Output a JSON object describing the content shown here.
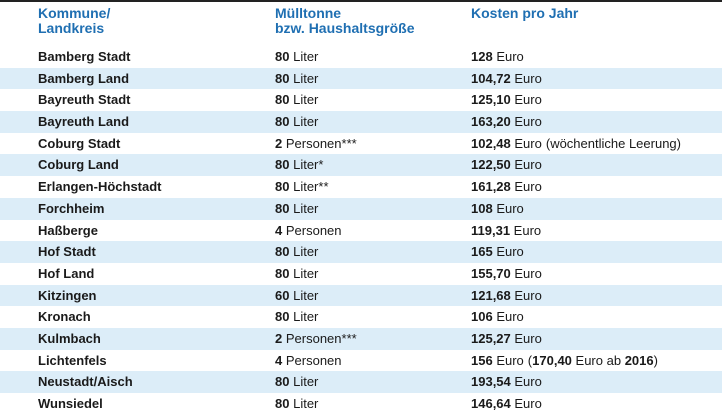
{
  "header": {
    "col1_line1": "Kommune/",
    "col1_line2": "Landkreis",
    "col2_line1": "Mülltonne",
    "col2_line2": "bzw. Haushaltsgröße",
    "col3": "Kosten pro Jahr"
  },
  "colors": {
    "header_text": "#1f6fb2",
    "row_shade": "#dcedf8"
  },
  "rows": [
    {
      "name": "Bamberg Stadt",
      "size_num": "80",
      "size_unit": "Liter",
      "cost_num": "128",
      "cost_unit": "Euro",
      "note_pre": "",
      "note_bold": "",
      "note_mid": "",
      "note_bold2": "",
      "note_post": ""
    },
    {
      "name": "Bamberg Land",
      "size_num": "80",
      "size_unit": "Liter",
      "cost_num": "104,72",
      "cost_unit": "Euro",
      "note_pre": "",
      "note_bold": "",
      "note_mid": "",
      "note_bold2": "",
      "note_post": ""
    },
    {
      "name": "Bayreuth Stadt",
      "size_num": "80",
      "size_unit": "Liter",
      "cost_num": "125,10",
      "cost_unit": "Euro",
      "note_pre": "",
      "note_bold": "",
      "note_mid": "",
      "note_bold2": "",
      "note_post": ""
    },
    {
      "name": "Bayreuth Land",
      "size_num": "80",
      "size_unit": "Liter",
      "cost_num": "163,20",
      "cost_unit": "Euro",
      "note_pre": "",
      "note_bold": "",
      "note_mid": "",
      "note_bold2": "",
      "note_post": ""
    },
    {
      "name": "Coburg Stadt",
      "size_num": "2",
      "size_unit": "Personen***",
      "cost_num": "102,48",
      "cost_unit": "Euro",
      "note_pre": "(wöchentliche Leerung)",
      "note_bold": "",
      "note_mid": "",
      "note_bold2": "",
      "note_post": ""
    },
    {
      "name": "Coburg Land",
      "size_num": "80",
      "size_unit": "Liter*",
      "cost_num": "122,50",
      "cost_unit": "Euro",
      "note_pre": "",
      "note_bold": "",
      "note_mid": "",
      "note_bold2": "",
      "note_post": ""
    },
    {
      "name": "Erlangen-Höchstadt",
      "size_num": "80",
      "size_unit": "Liter**",
      "cost_num": "161,28",
      "cost_unit": "Euro",
      "note_pre": "",
      "note_bold": "",
      "note_mid": "",
      "note_bold2": "",
      "note_post": ""
    },
    {
      "name": "Forchheim",
      "size_num": "80",
      "size_unit": "Liter",
      "cost_num": "108",
      "cost_unit": "Euro",
      "note_pre": "",
      "note_bold": "",
      "note_mid": "",
      "note_bold2": "",
      "note_post": ""
    },
    {
      "name": "Haßberge",
      "size_num": "4",
      "size_unit": "Personen",
      "cost_num": "119,31",
      "cost_unit": "Euro",
      "note_pre": "",
      "note_bold": "",
      "note_mid": "",
      "note_bold2": "",
      "note_post": ""
    },
    {
      "name": "Hof Stadt",
      "size_num": "80",
      "size_unit": "Liter",
      "cost_num": "165",
      "cost_unit": "Euro",
      "note_pre": "",
      "note_bold": "",
      "note_mid": "",
      "note_bold2": "",
      "note_post": ""
    },
    {
      "name": "Hof Land",
      "size_num": "80",
      "size_unit": "Liter",
      "cost_num": "155,70",
      "cost_unit": "Euro",
      "note_pre": "",
      "note_bold": "",
      "note_mid": "",
      "note_bold2": "",
      "note_post": ""
    },
    {
      "name": "Kitzingen",
      "size_num": "60",
      "size_unit": "Liter",
      "cost_num": "121,68",
      "cost_unit": "Euro",
      "note_pre": "",
      "note_bold": "",
      "note_mid": "",
      "note_bold2": "",
      "note_post": ""
    },
    {
      "name": "Kronach",
      "size_num": "80",
      "size_unit": "Liter",
      "cost_num": "106",
      "cost_unit": "Euro",
      "note_pre": "",
      "note_bold": "",
      "note_mid": "",
      "note_bold2": "",
      "note_post": ""
    },
    {
      "name": "Kulmbach",
      "size_num": "2",
      "size_unit": "Personen***",
      "cost_num": "125,27",
      "cost_unit": "Euro",
      "note_pre": "",
      "note_bold": "",
      "note_mid": "",
      "note_bold2": "",
      "note_post": ""
    },
    {
      "name": "Lichtenfels",
      "size_num": "4",
      "size_unit": "Personen",
      "cost_num": "156",
      "cost_unit": "Euro",
      "note_pre": "(",
      "note_bold": "170,40",
      "note_mid": "Euro ab",
      "note_bold2": "2016",
      "note_post": ")"
    },
    {
      "name": "Neustadt/Aisch",
      "size_num": "80",
      "size_unit": "Liter",
      "cost_num": "193,54",
      "cost_unit": "Euro",
      "note_pre": "",
      "note_bold": "",
      "note_mid": "",
      "note_bold2": "",
      "note_post": ""
    },
    {
      "name": "Wunsiedel",
      "size_num": "80",
      "size_unit": "Liter",
      "cost_num": "146,64",
      "cost_unit": "Euro",
      "note_pre": "",
      "note_bold": "",
      "note_mid": "",
      "note_bold2": "",
      "note_post": ""
    }
  ]
}
